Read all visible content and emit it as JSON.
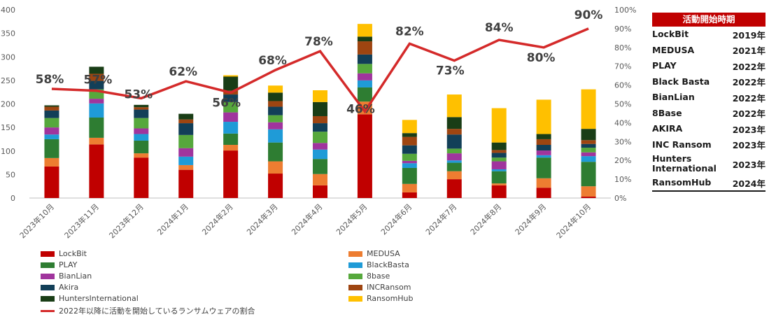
{
  "chart_data": {
    "type": "bar",
    "stacked": true,
    "categories": [
      "2023年10月",
      "2023年11月",
      "2023年12月",
      "2024年1月",
      "2024年2月",
      "2024年3月",
      "2024年4月",
      "2024年5月",
      "2024年6月",
      "2024年7月",
      "2024年8月",
      "2024年9月",
      "2024年10月"
    ],
    "ylim": [
      0,
      400
    ],
    "y_ticks": [
      "0",
      "50",
      "100",
      "150",
      "200",
      "250",
      "300",
      "350",
      "400"
    ],
    "y2lim": [
      0,
      100
    ],
    "y2_ticks": [
      "0%",
      "10%",
      "20%",
      "30%",
      "40%",
      "50%",
      "60%",
      "70%",
      "80%",
      "90%",
      "100%"
    ],
    "grid": false,
    "legend_position": "bottom",
    "series": [
      {
        "name": "LockBit",
        "color": "#c00000",
        "values": [
          67,
          114,
          86,
          60,
          101,
          52,
          27,
          178,
          12,
          40,
          27,
          22,
          3
        ]
      },
      {
        "name": "MEDUSA",
        "color": "#ed7d31",
        "values": [
          18,
          14,
          9,
          10,
          12,
          26,
          24,
          27,
          18,
          17,
          4,
          20,
          22
        ]
      },
      {
        "name": "PLAY",
        "color": "#2e7d32",
        "values": [
          40,
          43,
          27,
          0,
          24,
          40,
          32,
          30,
          34,
          18,
          26,
          44,
          52
        ]
      },
      {
        "name": "BlackBasta",
        "color": "#1f9bd7",
        "values": [
          10,
          30,
          14,
          18,
          25,
          28,
          20,
          15,
          10,
          5,
          4,
          5,
          12
        ]
      },
      {
        "name": "BianLian",
        "color": "#a0349d",
        "values": [
          15,
          10,
          12,
          18,
          20,
          15,
          14,
          15,
          5,
          15,
          17,
          10,
          8
        ]
      },
      {
        "name": "8base",
        "color": "#56a83c",
        "values": [
          20,
          20,
          22,
          28,
          22,
          15,
          24,
          20,
          15,
          10,
          8,
          0,
          10
        ]
      },
      {
        "name": "Akira",
        "color": "#123f58",
        "values": [
          16,
          18,
          18,
          25,
          16,
          18,
          18,
          20,
          18,
          30,
          10,
          12,
          8
        ]
      },
      {
        "name": "INCRansom",
        "color": "#9e4511",
        "values": [
          8,
          15,
          5,
          8,
          8,
          12,
          15,
          28,
          18,
          12,
          6,
          12,
          8
        ]
      },
      {
        "name": "HuntersInternational",
        "color": "#193d16",
        "values": [
          3,
          15,
          5,
          12,
          30,
          18,
          30,
          10,
          8,
          25,
          16,
          11,
          24
        ]
      },
      {
        "name": "RansomHub",
        "color": "#ffc000",
        "values": [
          0,
          0,
          0,
          0,
          3,
          15,
          25,
          27,
          28,
          48,
          73,
          73,
          84
        ]
      }
    ],
    "line_series": {
      "name": "2022年以降に活動を開始しているランサムウェアの割合",
      "color": "#d42a2a",
      "values": [
        58,
        57,
        53,
        62,
        56,
        68,
        78,
        46,
        82,
        73,
        84,
        80,
        90
      ],
      "labels": [
        "58%",
        "57%",
        "53%",
        "62%",
        "56%",
        "68%",
        "78%",
        "46%",
        "82%",
        "73%",
        "84%",
        "80%",
        "90%"
      ]
    }
  },
  "legend": {
    "items": [
      {
        "label": "LockBit",
        "color": "#c00000"
      },
      {
        "label": "MEDUSA",
        "color": "#ed7d31"
      },
      {
        "label": "PLAY",
        "color": "#2e7d32"
      },
      {
        "label": "BlackBasta",
        "color": "#1f9bd7"
      },
      {
        "label": "BianLian",
        "color": "#a0349d"
      },
      {
        "label": "8base",
        "color": "#56a83c"
      },
      {
        "label": "Akira",
        "color": "#123f58"
      },
      {
        "label": "INCRansom",
        "color": "#9e4511"
      },
      {
        "label": "HuntersInternational",
        "color": "#193d16"
      },
      {
        "label": "RansomHub",
        "color": "#ffc000"
      }
    ],
    "line_label": "2022年以降に活動を開始しているランサムウェアの割合",
    "line_color": "#d42a2a"
  },
  "side_table": {
    "header": "活動開始時期",
    "rows": [
      {
        "name": "LockBit",
        "year": "2019年"
      },
      {
        "name": "MEDUSA",
        "year": "2021年"
      },
      {
        "name": "PLAY",
        "year": "2022年"
      },
      {
        "name": "Black Basta",
        "year": "2022年"
      },
      {
        "name": "BianLian",
        "year": "2022年"
      },
      {
        "name": "8Base",
        "year": "2022年"
      },
      {
        "name": "AKIRA",
        "year": "2023年"
      },
      {
        "name": "INC Ransom",
        "year": "2023年"
      },
      {
        "name": "Hunters International",
        "year": "2023年"
      },
      {
        "name": "RansomHub",
        "year": "2024年"
      }
    ]
  }
}
